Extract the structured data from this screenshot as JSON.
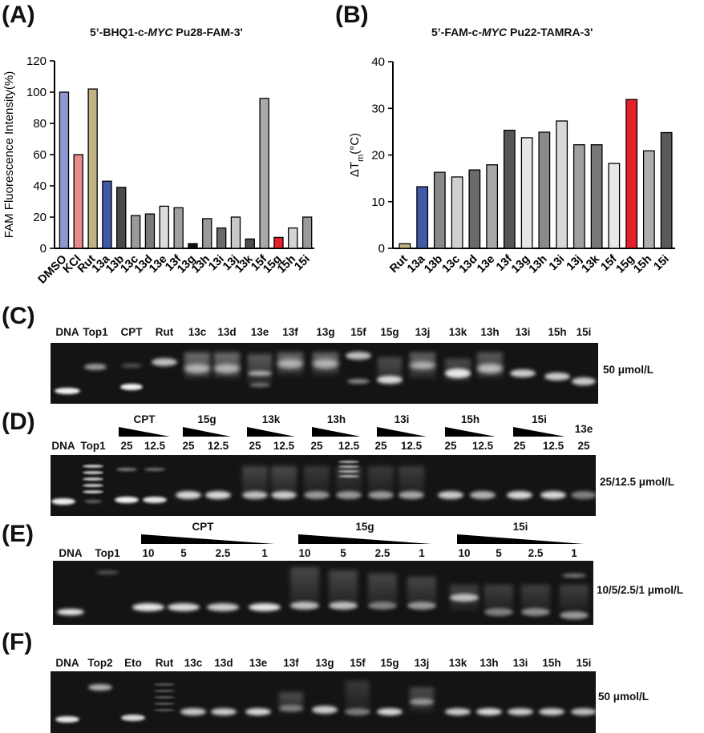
{
  "panels": {
    "a": {
      "letter": "(A)",
      "title_pre": "5’-BHQ1-c-",
      "title_it": "MYC",
      "title_post": " Pu28-FAM-3'"
    },
    "b": {
      "letter": "(B)",
      "title_pre": "5’-FAM-c-",
      "title_it": "MYC",
      "title_post": " Pu22-TAMRA-3'"
    },
    "c": {
      "letter": "(C)",
      "lanes": [
        "DNA",
        "Top1",
        "CPT",
        "Rut",
        "13c",
        "13d",
        "13e",
        "13f",
        "13g",
        "15f",
        "15g",
        "13j",
        "13k",
        "13h",
        "13i",
        "15h",
        "15i"
      ],
      "conc": "50 μmol/L"
    },
    "d": {
      "letter": "(D)",
      "lanes": [
        "DNA",
        "Top1"
      ],
      "groups": [
        "CPT",
        "15g",
        "13k",
        "13h",
        "13i",
        "15h",
        "15i",
        "13e"
      ],
      "doses": [
        "25",
        "12.5"
      ],
      "conc": "25/12.5 μmol/L"
    },
    "e": {
      "letter": "(E)",
      "lanes": [
        "DNA",
        "Top1"
      ],
      "groups": [
        "CPT",
        "15g",
        "15i"
      ],
      "doses": [
        "10",
        "5",
        "2.5",
        "1"
      ],
      "conc": "10/5/2.5/1 μmol/L"
    },
    "f": {
      "letter": "(F)",
      "lanes": [
        "DNA",
        "Top2",
        "Eto",
        "Rut",
        "13c",
        "13d",
        "13e",
        "13f",
        "13g",
        "15f",
        "15g",
        "13j",
        "13k",
        "13h",
        "13i",
        "15h",
        "15i"
      ],
      "conc": "50 μmol/L"
    }
  },
  "chart_data": [
    {
      "type": "bar",
      "title": "5’-BHQ1-c-MYC Pu28-FAM-3'",
      "ylabel": "FAM Fluorescence Intensity(%)",
      "ylim": [
        0,
        120
      ],
      "yticks": [
        "0",
        "20",
        "40",
        "60",
        "80",
        "100",
        "120"
      ],
      "categories": [
        "DMSO",
        "KCl",
        "Rut",
        "13a",
        "13b",
        "13c",
        "13d",
        "13e",
        "13f",
        "13g",
        "13h",
        "13i",
        "13j",
        "13k",
        "15f",
        "15g",
        "15h",
        "15i"
      ],
      "values": [
        100,
        60,
        102,
        43,
        39,
        21,
        22,
        27,
        26,
        3,
        19,
        13,
        20,
        6,
        96,
        7,
        13,
        20
      ],
      "colors": [
        "#8C96CF",
        "#E8898C",
        "#C2B183",
        "#3F5BA8",
        "#4A4A4A",
        "#9A9A9A",
        "#7A7A7A",
        "#DCDCDC",
        "#A0A0A0",
        "#111111",
        "#9A9A9A",
        "#6A6A6A",
        "#C8C8C8",
        "#4E4E4E",
        "#A9A9A9",
        "#E5202A",
        "#D5D5D5",
        "#9A9A9A"
      ]
    },
    {
      "type": "bar",
      "title": "5’-FAM-c-MYC Pu22-TAMRA-3'",
      "ylabel": "ΔT",
      "ylabel_sub": "m",
      "ylabel_unit": "(°C)",
      "ylim": [
        0,
        40
      ],
      "yticks": [
        "0",
        "10",
        "20",
        "30",
        "40"
      ],
      "categories": [
        "Rut",
        "13a",
        "13b",
        "13c",
        "13d",
        "13e",
        "13f",
        "13g",
        "13h",
        "13i",
        "13j",
        "13k",
        "15f",
        "15g",
        "15h",
        "15i"
      ],
      "values": [
        1,
        13.2,
        16.3,
        15.3,
        16.8,
        17.9,
        25.3,
        23.7,
        24.9,
        27.3,
        22.2,
        22.2,
        18.2,
        31.9,
        20.9,
        24.8
      ],
      "colors": [
        "#C2B183",
        "#3F5BA8",
        "#8A8A8A",
        "#D0D0D0",
        "#6A6A6A",
        "#A8A8A8",
        "#555555",
        "#E6E6E6",
        "#8A8A8A",
        "#D8D8D8",
        "#A0A0A0",
        "#777777",
        "#E8E8E8",
        "#E5202A",
        "#AEAEAE",
        "#5A5A5A"
      ]
    }
  ]
}
